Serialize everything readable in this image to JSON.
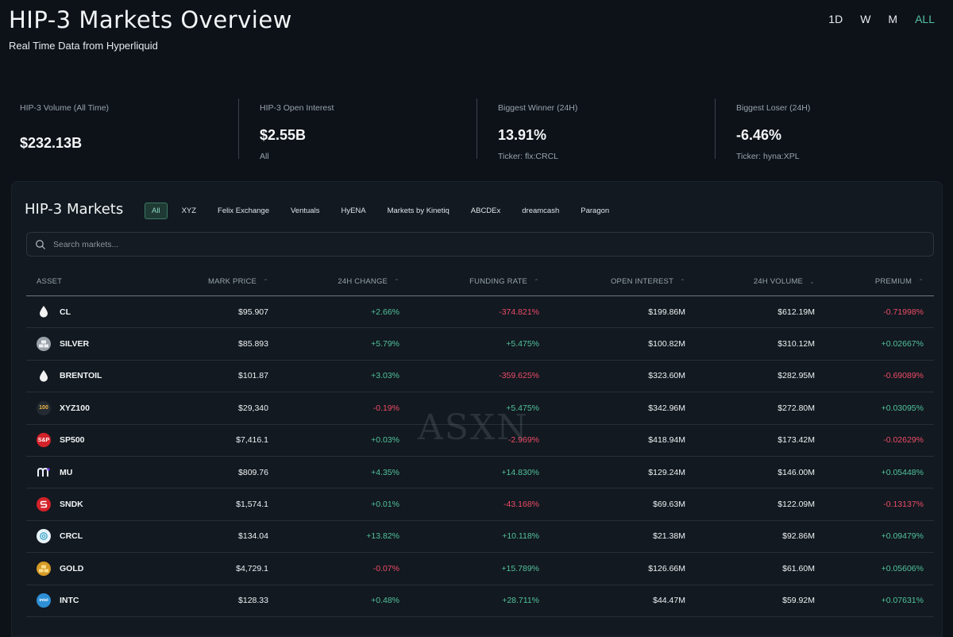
{
  "header": {
    "title": "HIP-3 Markets Overview",
    "subtitle": "Real Time Data from Hyperliquid",
    "ranges": [
      "1D",
      "W",
      "M",
      "ALL"
    ],
    "active_range": "ALL"
  },
  "stats": [
    {
      "label": "HIP-3 Volume (All Time)",
      "value": "$232.13B",
      "sub": ""
    },
    {
      "label": "HIP-3 Open Interest",
      "value": "$2.55B",
      "sub": "All"
    },
    {
      "label": "Biggest Winner (24H)",
      "value": "13.91%",
      "sub": "Ticker: flx:CRCL"
    },
    {
      "label": "Biggest Loser (24H)",
      "value": "-6.46%",
      "sub": "Ticker: hyna:XPL"
    }
  ],
  "markets": {
    "title": "HIP-3 Markets",
    "filters": [
      "All",
      "XYZ",
      "Felix Exchange",
      "Ventuals",
      "HyENA",
      "Markets by Kinetiq",
      "ABCDEx",
      "dreamcash",
      "Paragon"
    ],
    "active_filter": "All",
    "search_placeholder": "Search markets...",
    "columns": [
      "ASSET",
      "MARK PRICE",
      "24H CHANGE",
      "FUNDING RATE",
      "OPEN INTEREST",
      "24H VOLUME",
      "PREMIUM"
    ],
    "rows": [
      {
        "asset": "CL",
        "icon": "oil-drop-icon",
        "mark_price": "$95.907",
        "change": "+2.66%",
        "funding": "-374.821%",
        "oi": "$199.86M",
        "volume": "$612.19M",
        "premium": "-0.71998%"
      },
      {
        "asset": "SILVER",
        "icon": "silver-bars-icon",
        "mark_price": "$85.893",
        "change": "+5.79%",
        "funding": "+5.475%",
        "oi": "$100.82M",
        "volume": "$310.12M",
        "premium": "+0.02667%"
      },
      {
        "asset": "BRENTOIL",
        "icon": "oil-drop-icon",
        "mark_price": "$101.87",
        "change": "+3.03%",
        "funding": "-359.625%",
        "oi": "$323.60M",
        "volume": "$282.95M",
        "premium": "-0.69089%"
      },
      {
        "asset": "XYZ100",
        "icon": "xyz100-logo-icon",
        "icon_text": "100",
        "mark_price": "$29,340",
        "change": "-0.19%",
        "funding": "+5.475%",
        "oi": "$342.96M",
        "volume": "$272.80M",
        "premium": "+0.03095%"
      },
      {
        "asset": "SP500",
        "icon": "sp500-logo-icon",
        "icon_text": "S&P",
        "mark_price": "$7,416.1",
        "change": "+0.03%",
        "funding": "-2.969%",
        "oi": "$418.94M",
        "volume": "$173.42M",
        "premium": "-0.02629%"
      },
      {
        "asset": "MU",
        "icon": "micron-logo-icon",
        "mark_price": "$809.76",
        "change": "+4.35%",
        "funding": "+14.830%",
        "oi": "$129.24M",
        "volume": "$146.00M",
        "premium": "+0.05448%"
      },
      {
        "asset": "SNDK",
        "icon": "sandisk-logo-icon",
        "mark_price": "$1,574.1",
        "change": "+0.01%",
        "funding": "-43.168%",
        "oi": "$69.63M",
        "volume": "$122.09M",
        "premium": "-0.13137%"
      },
      {
        "asset": "CRCL",
        "icon": "circle-logo-icon",
        "mark_price": "$134.04",
        "change": "+13.82%",
        "funding": "+10.118%",
        "oi": "$21.38M",
        "volume": "$92.86M",
        "premium": "+0.09479%"
      },
      {
        "asset": "GOLD",
        "icon": "gold-bars-icon",
        "mark_price": "$4,729.1",
        "change": "-0.07%",
        "funding": "+15.789%",
        "oi": "$126.66M",
        "volume": "$61.60M",
        "premium": "+0.05606%"
      },
      {
        "asset": "INTC",
        "icon": "intel-logo-icon",
        "icon_text": "intel",
        "mark_price": "$128.33",
        "change": "+0.48%",
        "funding": "+28.711%",
        "oi": "$44.47M",
        "volume": "$59.92M",
        "premium": "+0.07631%"
      }
    ]
  },
  "watermark": "ASXN",
  "colors": {
    "background": "#0d1218",
    "panel": "#121920",
    "accent": "#55c0a3",
    "positive": "#52c29c",
    "negative": "#ee4c68"
  }
}
